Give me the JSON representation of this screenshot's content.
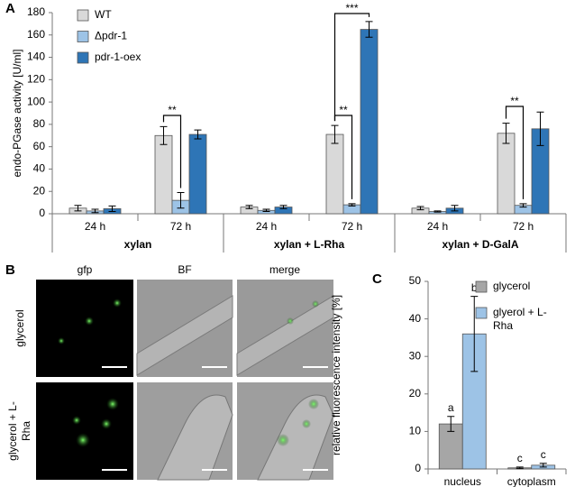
{
  "panel_labels": [
    "A",
    "B",
    "C"
  ],
  "chart_data": [
    {
      "type": "bar",
      "ylabel": "endo-PGase activity [U/ml]",
      "categories": [
        "24 h",
        "72 h",
        "24 h",
        "72 h",
        "24 h",
        "72 h"
      ],
      "groups": [
        "xylan",
        "xylan + L-Rha",
        "xylan + D-GalA"
      ],
      "series": [
        {
          "name": "WT",
          "color": "#d9d9d9",
          "values": [
            5,
            70,
            6,
            71,
            5,
            72
          ],
          "errors": [
            2.5,
            8,
            1.5,
            8,
            1.5,
            9
          ]
        },
        {
          "name": "Δpdr-1",
          "color": "#9dc3e6",
          "values": [
            2.5,
            12,
            3,
            8,
            2,
            7.5
          ],
          "errors": [
            1.5,
            7,
            1,
            1,
            0.5,
            1.5
          ]
        },
        {
          "name": "pdr-1-oex",
          "color": "#2e75b6",
          "values": [
            4.5,
            71,
            6,
            165,
            5,
            76
          ],
          "errors": [
            2.5,
            4,
            1.5,
            7,
            2.5,
            15
          ]
        }
      ],
      "annotations": [
        "**",
        "**",
        "***",
        "**"
      ],
      "ylim": [
        0,
        180
      ],
      "yticks": [
        0,
        20,
        40,
        60,
        80,
        100,
        120,
        140,
        160,
        180
      ]
    },
    {
      "type": "image-grid",
      "columns": [
        "gfp",
        "BF",
        "merge"
      ],
      "rows": [
        "glycerol",
        "glycerol + L-Rha"
      ]
    },
    {
      "type": "bar",
      "ylabel": "relative fluorescence intensity [%]",
      "categories": [
        "nucleus",
        "cytoplasm"
      ],
      "series": [
        {
          "name": "glycerol",
          "color": "#a6a6a6",
          "values": [
            12,
            0.3
          ],
          "errors": [
            2,
            0.2
          ],
          "letters": [
            "a",
            "c"
          ]
        },
        {
          "name": "glyerol + L-Rha",
          "color": "#9dc3e6",
          "values": [
            36,
            1
          ],
          "errors": [
            10,
            0.5
          ],
          "letters": [
            "b",
            "c"
          ]
        }
      ],
      "ylim": [
        0,
        50
      ],
      "yticks": [
        0,
        10,
        20,
        30,
        40,
        50
      ]
    }
  ]
}
